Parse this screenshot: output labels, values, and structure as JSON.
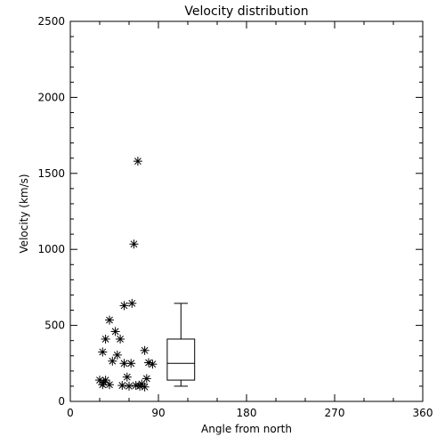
{
  "chart_data": {
    "type": "scatter",
    "title": "Velocity distribution",
    "xlabel": "Angle from north",
    "ylabel": "Velocity (km/s)",
    "xlim": [
      0,
      360
    ],
    "ylim": [
      0,
      2500
    ],
    "x_ticks": [
      0,
      90,
      180,
      270,
      360
    ],
    "y_ticks": [
      0,
      500,
      1000,
      1500,
      2000,
      2500
    ],
    "grid": false,
    "marker": "asterisk",
    "points": [
      {
        "x": 69,
        "y": 1580
      },
      {
        "x": 65,
        "y": 1035
      },
      {
        "x": 63,
        "y": 645
      },
      {
        "x": 55,
        "y": 630
      },
      {
        "x": 40,
        "y": 535
      },
      {
        "x": 46,
        "y": 460
      },
      {
        "x": 36,
        "y": 410
      },
      {
        "x": 51,
        "y": 410
      },
      {
        "x": 33,
        "y": 325
      },
      {
        "x": 48,
        "y": 305
      },
      {
        "x": 76,
        "y": 335
      },
      {
        "x": 43,
        "y": 265
      },
      {
        "x": 55,
        "y": 250
      },
      {
        "x": 62,
        "y": 250
      },
      {
        "x": 80,
        "y": 255
      },
      {
        "x": 84,
        "y": 245
      },
      {
        "x": 58,
        "y": 160
      },
      {
        "x": 78,
        "y": 150
      },
      {
        "x": 30,
        "y": 140
      },
      {
        "x": 34,
        "y": 125
      },
      {
        "x": 36,
        "y": 140
      },
      {
        "x": 33,
        "y": 110
      },
      {
        "x": 40,
        "y": 110
      },
      {
        "x": 53,
        "y": 105
      },
      {
        "x": 60,
        "y": 100
      },
      {
        "x": 67,
        "y": 105
      },
      {
        "x": 71,
        "y": 100
      },
      {
        "x": 73,
        "y": 115
      },
      {
        "x": 76,
        "y": 95
      }
    ],
    "boxplot": {
      "x": 113,
      "width": 28,
      "min": 100,
      "q1": 140,
      "median": 250,
      "q3": 410,
      "max": 645
    }
  }
}
